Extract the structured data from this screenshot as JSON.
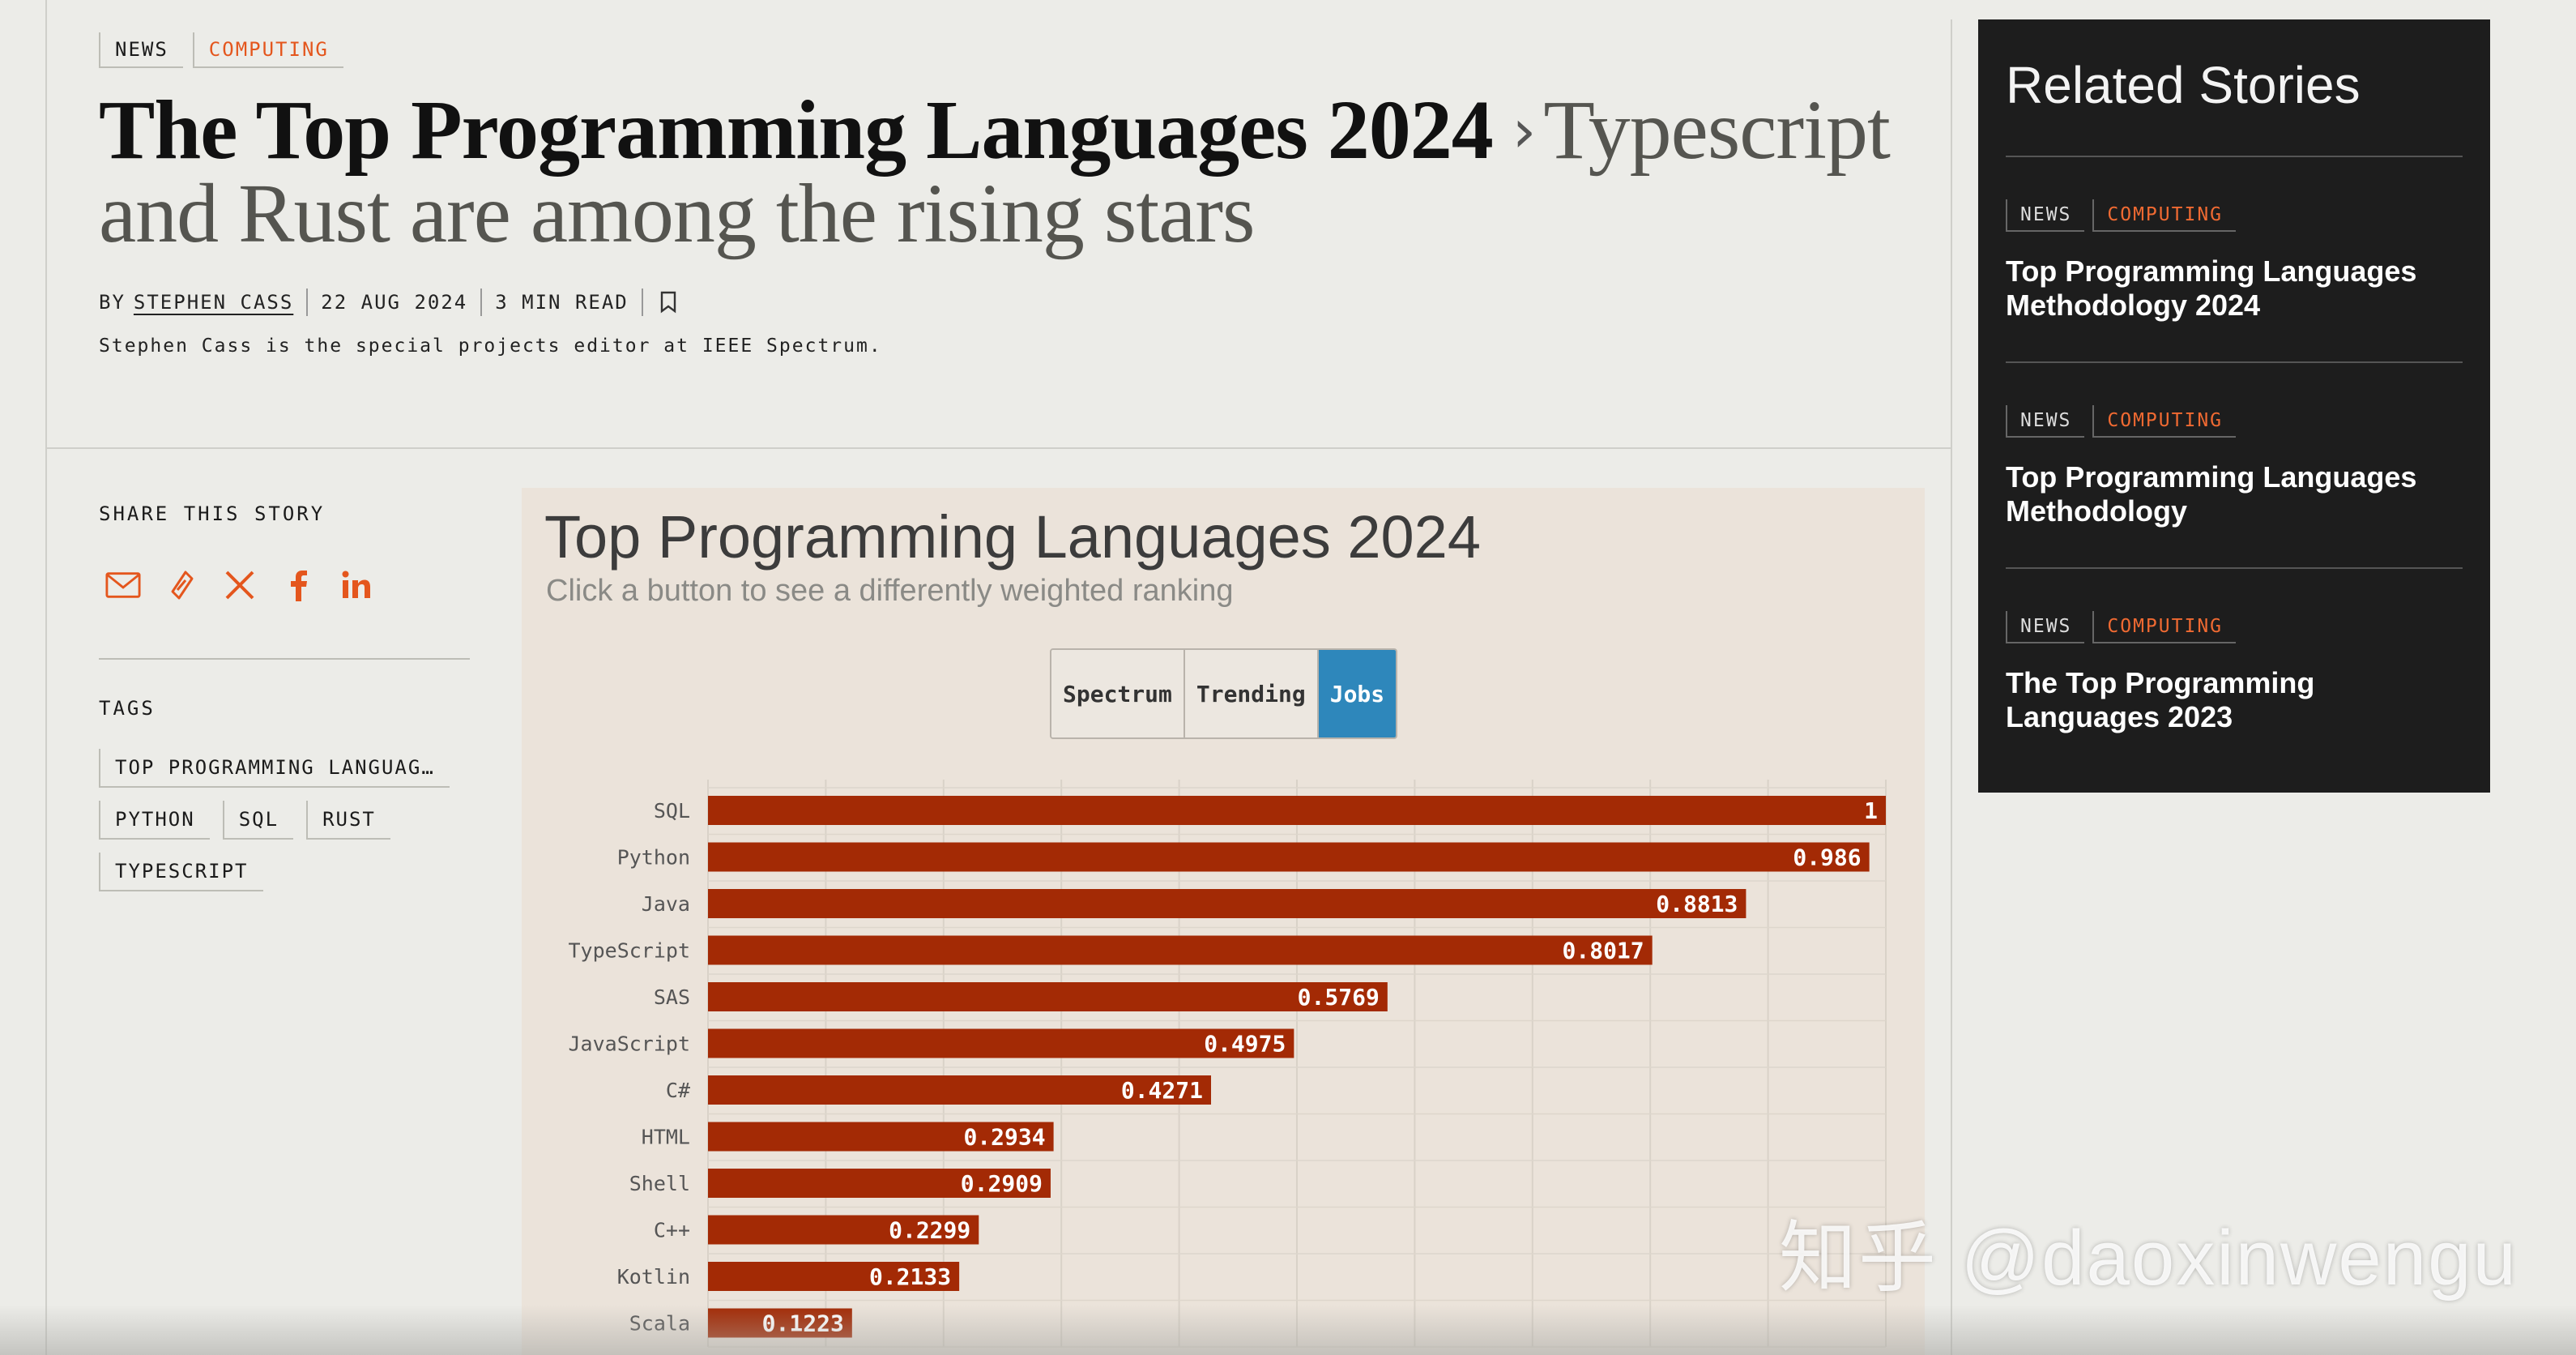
{
  "header": {
    "tags": [
      "NEWS",
      "COMPUTING"
    ],
    "title": "The Top Programming Languages 2024",
    "dek": "Typescript and Rust are among the rising stars",
    "byline": {
      "by": "BY",
      "author": "STEPHEN CASS",
      "date": "22 AUG 2024",
      "read_time": "3 MIN READ"
    },
    "author_bio": "Stephen Cass is the special projects editor at IEEE Spectrum."
  },
  "share": {
    "label": "SHARE THIS STORY",
    "icons": [
      "email-icon",
      "link-icon",
      "x-icon",
      "facebook-icon",
      "linkedin-icon"
    ]
  },
  "tags_section": {
    "label": "TAGS",
    "tags": [
      "TOP PROGRAMMING LANGUAG…",
      "PYTHON",
      "SQL",
      "RUST",
      "TYPESCRIPT"
    ]
  },
  "chart": {
    "title": "Top Programming Languages 2024",
    "subtitle": "Click a button to see a differently weighted ranking",
    "buttons": [
      "Spectrum",
      "Trending",
      "Jobs"
    ],
    "active_button": "Jobs"
  },
  "chart_data": {
    "type": "bar",
    "orientation": "horizontal",
    "title": "Top Programming Languages 2024",
    "categories": [
      "SQL",
      "Python",
      "Java",
      "TypeScript",
      "SAS",
      "JavaScript",
      "C#",
      "HTML",
      "Shell",
      "C++",
      "Kotlin",
      "Scala"
    ],
    "values": [
      1,
      0.986,
      0.8813,
      0.8017,
      0.5769,
      0.4975,
      0.4271,
      0.2934,
      0.2909,
      0.2299,
      0.2133,
      0.1223
    ],
    "labels": [
      "1",
      "0.986",
      "0.8813",
      "0.8017",
      "0.5769",
      "0.4975",
      "0.4271",
      "0.2934",
      "0.2909",
      "0.2299",
      "0.2133",
      "0.1223"
    ],
    "xlim": [
      0,
      1
    ],
    "grid": true,
    "bar_color": "#a32a05"
  },
  "related": {
    "title": "Related Stories",
    "items": [
      {
        "tags": [
          "NEWS",
          "COMPUTING"
        ],
        "headline": "Top Programming Languages Methodology 2024"
      },
      {
        "tags": [
          "NEWS",
          "COMPUTING"
        ],
        "headline": "Top Programming Languages Methodology"
      },
      {
        "tags": [
          "NEWS",
          "COMPUTING"
        ],
        "headline": "The Top Programming Languages 2023"
      }
    ]
  },
  "watermark": "知乎 @daoxinwengu",
  "colors": {
    "accent": "#e4561d",
    "active_button": "#2e87bb",
    "bar": "#a32a05",
    "related_bg": "#1d1d1d"
  }
}
